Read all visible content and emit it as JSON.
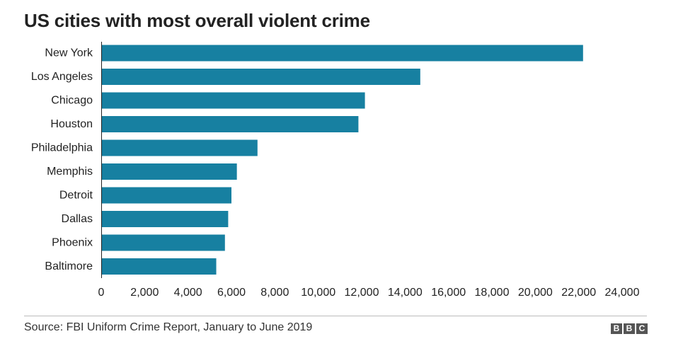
{
  "title": "US cities with most overall violent crime",
  "source": "Source: FBI Uniform Crime Report, January to June 2019",
  "brand": {
    "logo_letters": [
      "B",
      "B",
      "C"
    ]
  },
  "colors": {
    "bar": "#1780a1",
    "text": "#222222",
    "logo": "#555555"
  },
  "chart_data": {
    "type": "bar",
    "orientation": "horizontal",
    "categories": [
      "New York",
      "Los Angeles",
      "Chicago",
      "Houston",
      "Philadelphia",
      "Memphis",
      "Detroit",
      "Dallas",
      "Phoenix",
      "Baltimore"
    ],
    "values": [
      22200,
      14700,
      12150,
      11850,
      7200,
      6250,
      6000,
      5850,
      5700,
      5300
    ],
    "xlim": [
      0,
      24000
    ],
    "xticks": [
      0,
      2000,
      4000,
      6000,
      8000,
      10000,
      12000,
      14000,
      16000,
      18000,
      20000,
      22000,
      24000
    ],
    "xtick_labels": [
      "0",
      "2,000",
      "4,000",
      "6,000",
      "8,000",
      "10,000",
      "12,000",
      "14,000",
      "16,000",
      "18,000",
      "20,000",
      "22,000",
      "24,000"
    ],
    "grid": false,
    "legend": "none"
  }
}
